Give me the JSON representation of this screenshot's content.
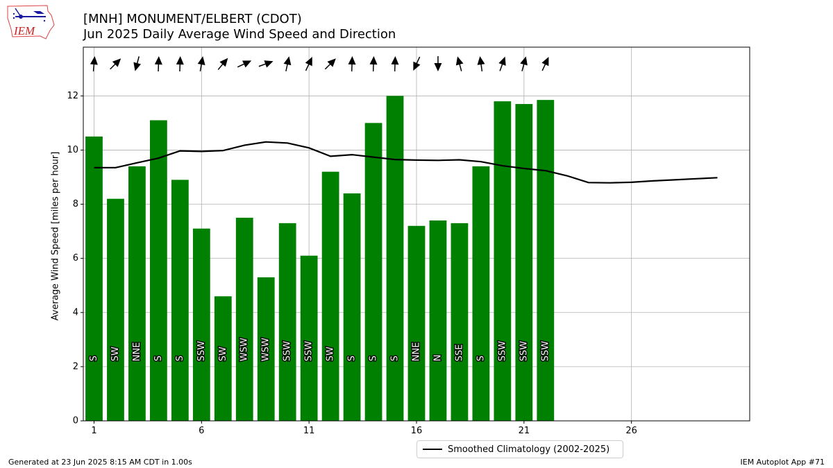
{
  "header": {
    "title_line1": "[MNH] MONUMENT/ELBERT (CDOT)",
    "title_line2": "Jun 2025 Daily Average Wind Speed and Direction"
  },
  "logo": {
    "text": "IEM",
    "icon": "iowa-state-outline-logo"
  },
  "footer": {
    "left": "Generated at 23 Jun 2025 8:15 AM CDT in 1.00s",
    "right": "IEM Autoplot App #71"
  },
  "legend": {
    "label": "Smoothed Climatology (2002-2025)"
  },
  "colors": {
    "bar": "#008000",
    "line": "#000000",
    "grid": "#b0b0b0"
  },
  "chart_data": {
    "type": "bar",
    "ylabel": "Average Wind Speed [miles per hour]",
    "xlabel": "",
    "xlim": [
      0.5,
      31.5
    ],
    "ylim": [
      0,
      13.8
    ],
    "xticks": [
      1,
      6,
      11,
      16,
      21,
      26
    ],
    "yticks": [
      0,
      2,
      4,
      6,
      8,
      10,
      12
    ],
    "grid": true,
    "legend_position": "below-center",
    "series": [
      {
        "kind": "bar",
        "days": [
          1,
          2,
          3,
          4,
          5,
          6,
          7,
          8,
          9,
          10,
          11,
          12,
          13,
          14,
          15,
          16,
          17,
          18,
          19,
          20,
          21,
          22
        ],
        "values": [
          10.5,
          8.2,
          9.4,
          11.1,
          8.9,
          7.1,
          4.6,
          7.5,
          5.3,
          7.3,
          6.1,
          9.2,
          8.4,
          11.0,
          12.0,
          7.2,
          7.4,
          7.3,
          9.4,
          11.8,
          11.7,
          11.85
        ],
        "direction_labels": [
          "S",
          "SW",
          "NNE",
          "S",
          "S",
          "SSW",
          "SW",
          "WSW",
          "WSW",
          "SSW",
          "SSW",
          "SW",
          "S",
          "S",
          "S",
          "NNE",
          "N",
          "SSE",
          "S",
          "SSW",
          "SSW",
          "SSW"
        ],
        "arrow_bearing_deg": [
          5,
          45,
          195,
          2,
          2,
          10,
          40,
          65,
          70,
          12,
          25,
          45,
          2,
          2,
          2,
          205,
          180,
          345,
          352,
          20,
          15,
          25
        ]
      },
      {
        "kind": "line",
        "name": "Smoothed Climatology (2002-2025)",
        "days": [
          1,
          2,
          3,
          4,
          5,
          6,
          7,
          8,
          9,
          10,
          11,
          12,
          13,
          14,
          15,
          16,
          17,
          18,
          19,
          20,
          21,
          22,
          23,
          24,
          25,
          26,
          27,
          28,
          29,
          30
        ],
        "values": [
          9.35,
          9.35,
          9.53,
          9.7,
          9.97,
          9.95,
          9.98,
          10.18,
          10.3,
          10.26,
          10.08,
          9.77,
          9.83,
          9.74,
          9.65,
          9.63,
          9.62,
          9.64,
          9.57,
          9.42,
          9.32,
          9.24,
          9.05,
          8.8,
          8.79,
          8.81,
          8.86,
          8.9,
          8.94,
          8.98
        ]
      }
    ]
  }
}
